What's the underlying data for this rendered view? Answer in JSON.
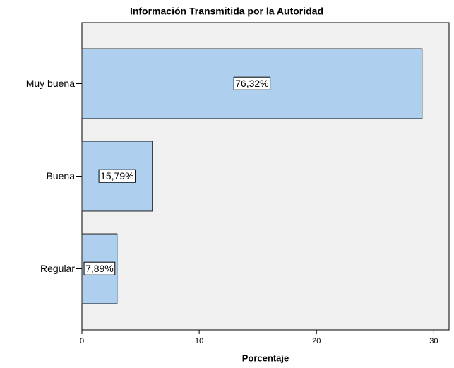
{
  "chart_data": {
    "type": "hbar",
    "title": "Información Transmitida por la Autoridad",
    "categories": [
      "Muy buena",
      "Buena",
      "Regular"
    ],
    "values": [
      29,
      6,
      3
    ],
    "value_labels": [
      "76,32%",
      "15,79%",
      "7,89%"
    ],
    "color": "#aed0ee",
    "xlabel": "Porcentaje",
    "xlim": [
      0,
      31.3
    ],
    "xticks": [
      0,
      10,
      20,
      30
    ]
  }
}
